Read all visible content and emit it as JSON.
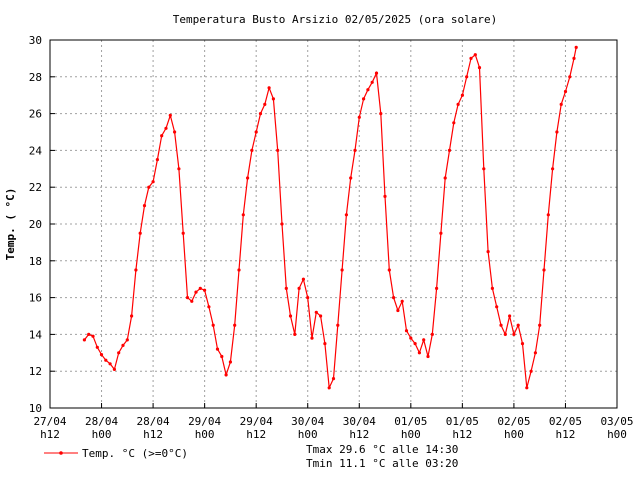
{
  "chart_data": {
    "type": "line",
    "title": "Temperatura Busto Arsizio 02/05/2025 (ora solare)",
    "ylabel": "Temp. ( °C)",
    "xlabel": "",
    "ylim": [
      10,
      30
    ],
    "yticks": [
      "10",
      "12",
      "14",
      "16",
      "18",
      "20",
      "22",
      "24",
      "26",
      "28",
      "30"
    ],
    "xlim": [
      "27/04 h12",
      "03/05 h00"
    ],
    "xticks": [
      {
        "date": "27/04",
        "hour": "h12"
      },
      {
        "date": "28/04",
        "hour": "h00"
      },
      {
        "date": "28/04",
        "hour": "h12"
      },
      {
        "date": "29/04",
        "hour": "h00"
      },
      {
        "date": "29/04",
        "hour": "h12"
      },
      {
        "date": "30/04",
        "hour": "h00"
      },
      {
        "date": "30/04",
        "hour": "h12"
      },
      {
        "date": "01/05",
        "hour": "h00"
      },
      {
        "date": "01/05",
        "hour": "h12"
      },
      {
        "date": "02/05",
        "hour": "h00"
      },
      {
        "date": "02/05",
        "hour": "h12"
      },
      {
        "date": "03/05",
        "hour": "h00"
      }
    ],
    "grid": true,
    "legend_position": "bottom-left",
    "series": [
      {
        "name": "Temp. °C (>=0°C)",
        "color": "#ff0000",
        "points": [
          [
            "27/04 20:00",
            13.7
          ],
          [
            "27/04 21:00",
            14.0
          ],
          [
            "27/04 22:00",
            13.9
          ],
          [
            "27/04 23:00",
            13.3
          ],
          [
            "28/04 00:00",
            12.9
          ],
          [
            "28/04 01:00",
            12.6
          ],
          [
            "28/04 02:00",
            12.4
          ],
          [
            "28/04 03:00",
            12.1
          ],
          [
            "28/04 04:00",
            13.0
          ],
          [
            "28/04 05:00",
            13.4
          ],
          [
            "28/04 06:00",
            13.7
          ],
          [
            "28/04 07:00",
            15.0
          ],
          [
            "28/04 08:00",
            17.5
          ],
          [
            "28/04 09:00",
            19.5
          ],
          [
            "28/04 10:00",
            21.0
          ],
          [
            "28/04 11:00",
            22.0
          ],
          [
            "28/04 12:00",
            22.3
          ],
          [
            "28/04 13:00",
            23.5
          ],
          [
            "28/04 14:00",
            24.8
          ],
          [
            "28/04 15:00",
            25.2
          ],
          [
            "28/04 16:00",
            25.9
          ],
          [
            "28/04 17:00",
            25.0
          ],
          [
            "28/04 18:00",
            23.0
          ],
          [
            "28/04 19:00",
            19.5
          ],
          [
            "28/04 20:00",
            16.0
          ],
          [
            "28/04 21:00",
            15.8
          ],
          [
            "28/04 22:00",
            16.3
          ],
          [
            "28/04 23:00",
            16.5
          ],
          [
            "29/04 00:00",
            16.4
          ],
          [
            "29/04 01:00",
            15.5
          ],
          [
            "29/04 02:00",
            14.5
          ],
          [
            "29/04 03:00",
            13.2
          ],
          [
            "29/04 04:00",
            12.8
          ],
          [
            "29/04 05:00",
            11.8
          ],
          [
            "29/04 06:00",
            12.5
          ],
          [
            "29/04 07:00",
            14.5
          ],
          [
            "29/04 08:00",
            17.5
          ],
          [
            "29/04 09:00",
            20.5
          ],
          [
            "29/04 10:00",
            22.5
          ],
          [
            "29/04 11:00",
            24.0
          ],
          [
            "29/04 12:00",
            25.0
          ],
          [
            "29/04 13:00",
            26.0
          ],
          [
            "29/04 14:00",
            26.5
          ],
          [
            "29/04 15:00",
            27.4
          ],
          [
            "29/04 16:00",
            26.8
          ],
          [
            "29/04 17:00",
            24.0
          ],
          [
            "29/04 18:00",
            20.0
          ],
          [
            "29/04 19:00",
            16.5
          ],
          [
            "29/04 20:00",
            15.0
          ],
          [
            "29/04 21:00",
            14.0
          ],
          [
            "29/04 22:00",
            16.5
          ],
          [
            "29/04 23:00",
            17.0
          ],
          [
            "30/04 00:00",
            16.0
          ],
          [
            "30/04 01:00",
            13.8
          ],
          [
            "30/04 02:00",
            15.2
          ],
          [
            "30/04 03:00",
            15.0
          ],
          [
            "30/04 04:00",
            13.5
          ],
          [
            "30/04 05:00",
            11.1
          ],
          [
            "30/04 06:00",
            11.6
          ],
          [
            "30/04 07:00",
            14.5
          ],
          [
            "30/04 08:00",
            17.5
          ],
          [
            "30/04 09:00",
            20.5
          ],
          [
            "30/04 10:00",
            22.5
          ],
          [
            "30/04 11:00",
            24.0
          ],
          [
            "30/04 12:00",
            25.8
          ],
          [
            "30/04 13:00",
            26.8
          ],
          [
            "30/04 14:00",
            27.3
          ],
          [
            "30/04 15:00",
            27.7
          ],
          [
            "30/04 16:00",
            28.2
          ],
          [
            "30/04 17:00",
            26.0
          ],
          [
            "30/04 18:00",
            21.5
          ],
          [
            "30/04 19:00",
            17.5
          ],
          [
            "30/04 20:00",
            16.0
          ],
          [
            "30/04 21:00",
            15.3
          ],
          [
            "30/04 22:00",
            15.8
          ],
          [
            "30/04 23:00",
            14.2
          ],
          [
            "01/05 00:00",
            13.8
          ],
          [
            "01/05 01:00",
            13.5
          ],
          [
            "01/05 02:00",
            13.0
          ],
          [
            "01/05 03:00",
            13.7
          ],
          [
            "01/05 04:00",
            12.8
          ],
          [
            "01/05 05:00",
            14.0
          ],
          [
            "01/05 06:00",
            16.5
          ],
          [
            "01/05 07:00",
            19.5
          ],
          [
            "01/05 08:00",
            22.5
          ],
          [
            "01/05 09:00",
            24.0
          ],
          [
            "01/05 10:00",
            25.5
          ],
          [
            "01/05 11:00",
            26.5
          ],
          [
            "01/05 12:00",
            27.0
          ],
          [
            "01/05 13:00",
            28.0
          ],
          [
            "01/05 14:00",
            29.0
          ],
          [
            "01/05 15:00",
            29.2
          ],
          [
            "01/05 16:00",
            28.5
          ],
          [
            "01/05 17:00",
            23.0
          ],
          [
            "01/05 18:00",
            18.5
          ],
          [
            "01/05 19:00",
            16.5
          ],
          [
            "01/05 20:00",
            15.5
          ],
          [
            "01/05 21:00",
            14.5
          ],
          [
            "01/05 22:00",
            14.0
          ],
          [
            "01/05 23:00",
            15.0
          ],
          [
            "02/05 00:00",
            14.0
          ],
          [
            "02/05 01:00",
            14.5
          ],
          [
            "02/05 02:00",
            13.5
          ],
          [
            "02/05 03:00",
            11.1
          ],
          [
            "02/05 04:00",
            12.0
          ],
          [
            "02/05 05:00",
            13.0
          ],
          [
            "02/05 06:00",
            14.5
          ],
          [
            "02/05 07:00",
            17.5
          ],
          [
            "02/05 08:00",
            20.5
          ],
          [
            "02/05 09:00",
            23.0
          ],
          [
            "02/05 10:00",
            25.0
          ],
          [
            "02/05 11:00",
            26.5
          ],
          [
            "02/05 12:00",
            27.2
          ],
          [
            "02/05 13:00",
            28.0
          ],
          [
            "02/05 14:00",
            29.0
          ],
          [
            "02/05 14:30",
            29.6
          ]
        ]
      }
    ]
  },
  "stats": {
    "tmax": "Tmax 29.6 °C alle 14:30",
    "tmin": "Tmin 11.1 °C alle 03:20"
  }
}
